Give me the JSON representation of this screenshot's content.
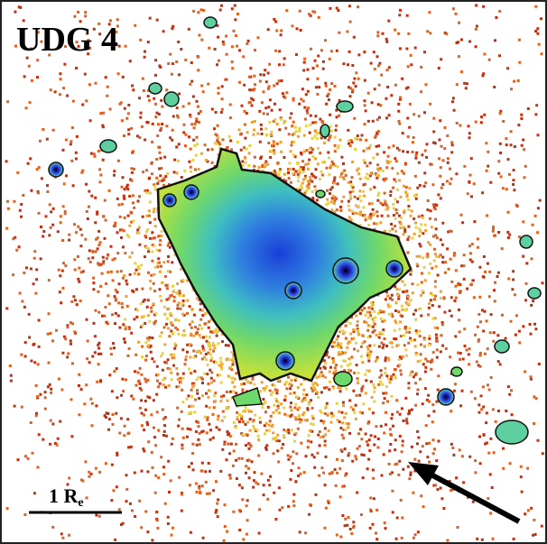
{
  "image": {
    "label": "UDG 4",
    "scale_bar": {
      "label": "1 R",
      "subscript": "e"
    }
  }
}
